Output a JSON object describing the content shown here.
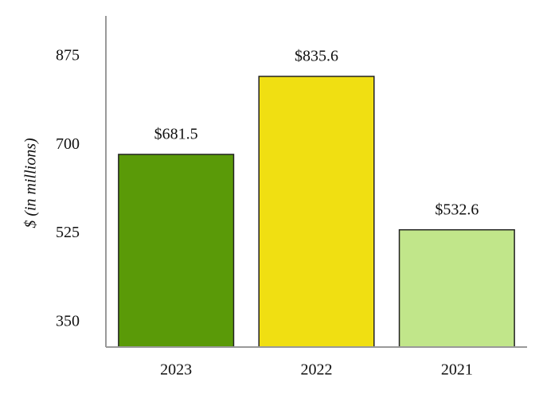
{
  "chart_data": {
    "type": "bar",
    "y_label": "$ (in millions)",
    "categories": [
      "2023",
      "2022",
      "2021"
    ],
    "values": [
      681.5,
      835.6,
      532.6
    ],
    "value_labels": [
      "$681.5",
      "$835.6",
      "$532.6"
    ],
    "colors": [
      "#5a9a08",
      "#f0df12",
      "#c1e68a"
    ],
    "ylim": [
      301,
      955
    ],
    "yticks": [
      350,
      525,
      700,
      875
    ]
  }
}
